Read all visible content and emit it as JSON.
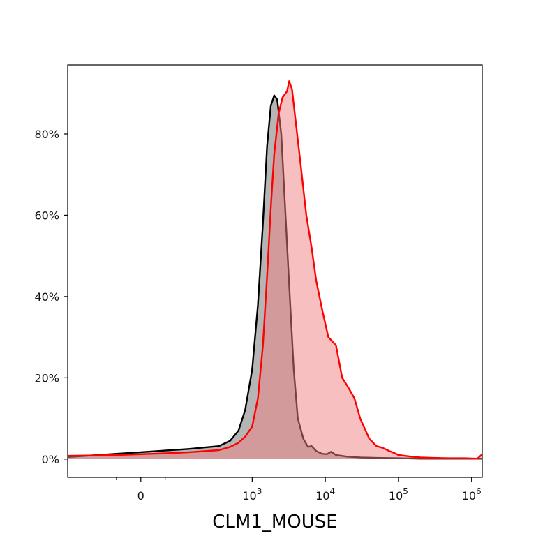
{
  "chart_data": {
    "type": "area",
    "title": "",
    "xlabel": "CLM1_MOUSE",
    "ylabel": "",
    "x_scale": "logicle",
    "xlim": [
      -300,
      1400000
    ],
    "ylim": [
      -0.045,
      0.97
    ],
    "grid": false,
    "legend": "none",
    "x_ticks": [
      {
        "value": 0,
        "label": "0"
      },
      {
        "value": 1000,
        "base": "10",
        "exp": "3"
      },
      {
        "value": 10000,
        "base": "10",
        "exp": "4"
      },
      {
        "value": 100000,
        "base": "10",
        "exp": "5"
      },
      {
        "value": 1000000,
        "base": "10",
        "exp": "6"
      }
    ],
    "x_minor_ticks": [
      -100,
      100
    ],
    "y_ticks": [
      {
        "value": 0.0,
        "label": "0%"
      },
      {
        "value": 0.2,
        "label": "20%"
      },
      {
        "value": 0.4,
        "label": "40%"
      },
      {
        "value": 0.6,
        "label": "60%"
      },
      {
        "value": 0.8,
        "label": "80%"
      }
    ],
    "series": [
      {
        "line_color": "#000000",
        "fill_color": "#808080",
        "fill_opacity": 0.58,
        "points": [
          [
            -300,
            0.005
          ],
          [
            -200,
            0.009
          ],
          [
            -100,
            0.013
          ],
          [
            0,
            0.017
          ],
          [
            100,
            0.021
          ],
          [
            200,
            0.025
          ],
          [
            350,
            0.032
          ],
          [
            500,
            0.045
          ],
          [
            650,
            0.07
          ],
          [
            800,
            0.12
          ],
          [
            1000,
            0.22
          ],
          [
            1200,
            0.38
          ],
          [
            1400,
            0.58
          ],
          [
            1600,
            0.77
          ],
          [
            1800,
            0.87
          ],
          [
            2000,
            0.895
          ],
          [
            2200,
            0.885
          ],
          [
            2500,
            0.8
          ],
          [
            2800,
            0.63
          ],
          [
            3200,
            0.43
          ],
          [
            3700,
            0.22
          ],
          [
            4200,
            0.1
          ],
          [
            5000,
            0.05
          ],
          [
            5800,
            0.03
          ],
          [
            6500,
            0.032
          ],
          [
            7500,
            0.02
          ],
          [
            9000,
            0.013
          ],
          [
            10500,
            0.012
          ],
          [
            12000,
            0.018
          ],
          [
            14000,
            0.01
          ],
          [
            20000,
            0.006
          ],
          [
            30000,
            0.004
          ],
          [
            50000,
            0.003
          ],
          [
            100000,
            0.002
          ],
          [
            200000,
            0.001
          ],
          [
            500000,
            0.001
          ],
          [
            1400000,
            0.001
          ]
        ]
      },
      {
        "line_color": "#ff0000",
        "fill_color": "#f08080",
        "fill_opacity": 0.5,
        "points": [
          [
            -300,
            0.008
          ],
          [
            -200,
            0.009
          ],
          [
            -100,
            0.01
          ],
          [
            0,
            0.012
          ],
          [
            100,
            0.014
          ],
          [
            200,
            0.017
          ],
          [
            350,
            0.022
          ],
          [
            500,
            0.03
          ],
          [
            650,
            0.04
          ],
          [
            800,
            0.055
          ],
          [
            1000,
            0.08
          ],
          [
            1200,
            0.15
          ],
          [
            1400,
            0.28
          ],
          [
            1600,
            0.45
          ],
          [
            1800,
            0.62
          ],
          [
            2000,
            0.75
          ],
          [
            2300,
            0.85
          ],
          [
            2600,
            0.89
          ],
          [
            3000,
            0.905
          ],
          [
            3200,
            0.93
          ],
          [
            3500,
            0.91
          ],
          [
            4000,
            0.82
          ],
          [
            4500,
            0.74
          ],
          [
            5500,
            0.6
          ],
          [
            6500,
            0.52
          ],
          [
            7500,
            0.44
          ],
          [
            9000,
            0.37
          ],
          [
            11000,
            0.3
          ],
          [
            14000,
            0.28
          ],
          [
            17000,
            0.2
          ],
          [
            20000,
            0.18
          ],
          [
            25000,
            0.15
          ],
          [
            30000,
            0.1
          ],
          [
            40000,
            0.05
          ],
          [
            50000,
            0.032
          ],
          [
            60000,
            0.028
          ],
          [
            75000,
            0.02
          ],
          [
            90000,
            0.014
          ],
          [
            100000,
            0.01
          ],
          [
            150000,
            0.006
          ],
          [
            200000,
            0.004
          ],
          [
            300000,
            0.003
          ],
          [
            500000,
            0.002
          ],
          [
            800000,
            0.002
          ],
          [
            1200000,
            0.001
          ],
          [
            1400000,
            0.012
          ]
        ]
      }
    ]
  }
}
